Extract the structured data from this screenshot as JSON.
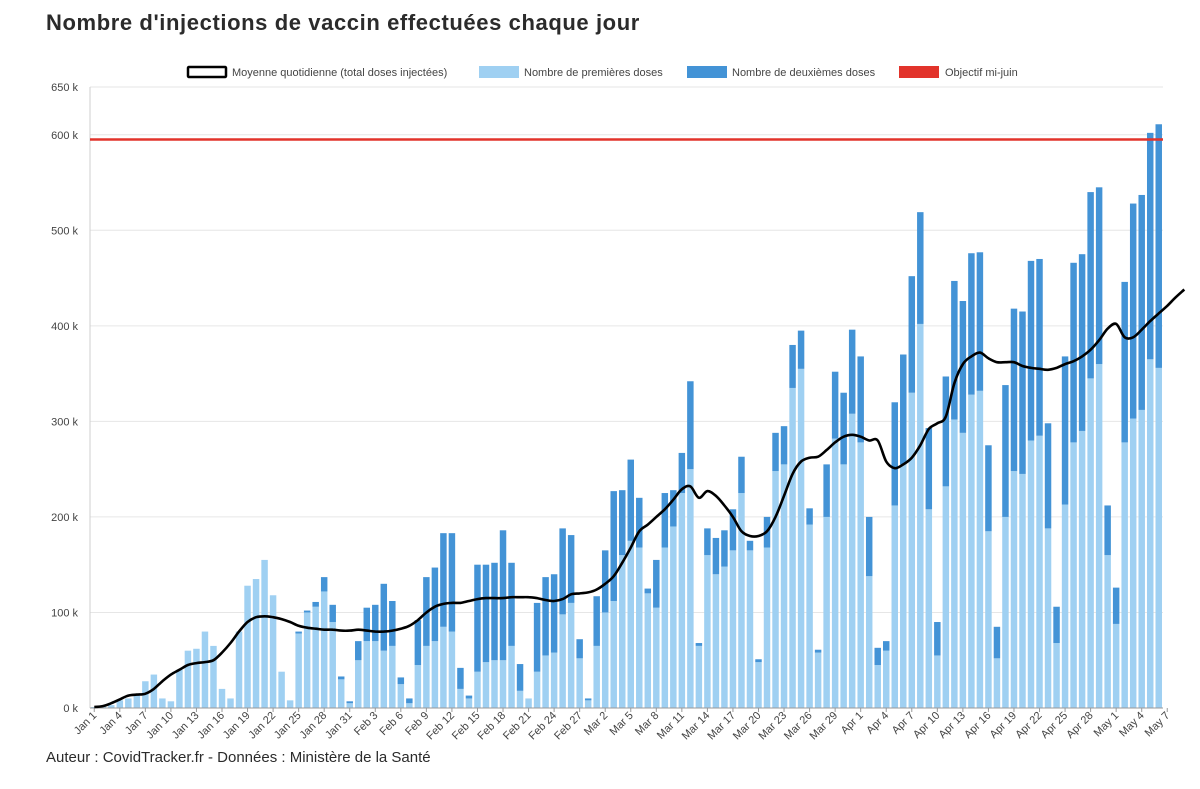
{
  "title": "Nombre d'injections de vaccin effectuées chaque jour",
  "footer": "Auteur : CovidTracker.fr - Données : Ministère de la Santé",
  "colors": {
    "first": "#9fd0f2",
    "second": "#4393d6",
    "average": "#000000",
    "objective": "#e2332b",
    "grid": "#e6e6e6"
  },
  "chart_data": {
    "type": "bar",
    "stacked": true,
    "legend_position": "top-center",
    "grid": true,
    "ylim": [
      0,
      650
    ],
    "y_ticks": [
      {
        "v": 0,
        "label": "0 k"
      },
      {
        "v": 100,
        "label": "100 k"
      },
      {
        "v": 200,
        "label": "200 k"
      },
      {
        "v": 300,
        "label": "300 k"
      },
      {
        "v": 400,
        "label": "400 k"
      },
      {
        "v": 500,
        "label": "500 k"
      },
      {
        "v": 600,
        "label": "600 k"
      },
      {
        "v": 650,
        "label": "650 k"
      }
    ],
    "x_tick_labels": [
      "Jan 1",
      "Jan 4",
      "Jan 7",
      "Jan 10",
      "Jan 13",
      "Jan 16",
      "Jan 19",
      "Jan 22",
      "Jan 25",
      "Jan 28",
      "Jan 31",
      "Feb 3",
      "Feb 6",
      "Feb 9",
      "Feb 12",
      "Feb 15",
      "Feb 18",
      "Feb 21",
      "Feb 24",
      "Feb 27",
      "Mar 2",
      "Mar 5",
      "Mar 8",
      "Mar 11",
      "Mar 14",
      "Mar 17",
      "Mar 20",
      "Mar 23",
      "Mar 26",
      "Mar 29",
      "Apr 1",
      "Apr 4",
      "Apr 7",
      "Apr 10",
      "Apr 13",
      "Apr 16",
      "Apr 19",
      "Apr 22",
      "Apr 25",
      "Apr 28",
      "May 1",
      "May 4",
      "May 7"
    ],
    "x_tick_every_days": 3,
    "legend": [
      {
        "key": "average",
        "label": "Moyenne quotidienne (total doses injectées)"
      },
      {
        "key": "first",
        "label": "Nombre de premières doses"
      },
      {
        "key": "second",
        "label": "Nombre de deuxièmes doses"
      },
      {
        "key": "objective",
        "label": "Objectif mi-juin"
      }
    ],
    "unit": "thousands of doses",
    "first_doses": [
      1,
      2,
      3,
      8,
      10,
      15,
      28,
      35,
      10,
      7,
      40,
      60,
      62,
      80,
      65,
      20,
      10,
      80,
      128,
      135,
      155,
      118,
      38,
      8,
      78,
      100,
      106,
      122,
      90,
      30,
      5,
      50,
      70,
      70,
      60,
      65,
      25,
      5,
      45,
      65,
      70,
      85,
      80,
      20,
      10,
      38,
      48,
      50,
      50,
      65,
      18,
      10,
      38,
      55,
      58,
      98,
      110,
      52,
      8,
      65,
      100,
      112,
      160,
      175,
      168,
      120,
      105,
      168,
      190,
      225,
      250,
      65,
      160,
      140,
      148,
      165,
      225,
      165,
      48,
      168,
      248,
      255,
      335,
      355,
      192,
      58,
      200,
      282,
      255,
      308,
      278,
      138,
      45,
      60,
      212,
      255,
      330,
      402,
      208,
      55,
      232,
      302,
      288,
      328,
      332,
      185,
      52,
      200,
      248,
      245,
      280,
      285,
      188,
      68,
      213,
      278,
      290,
      345,
      360,
      160,
      88,
      278,
      303,
      312,
      365,
      356
    ],
    "second_doses": [
      0,
      0,
      0,
      0,
      0,
      0,
      0,
      0,
      0,
      0,
      0,
      0,
      0,
      0,
      0,
      0,
      0,
      0,
      0,
      0,
      0,
      0,
      0,
      0,
      2,
      2,
      5,
      15,
      18,
      3,
      2,
      20,
      35,
      38,
      70,
      47,
      7,
      5,
      47,
      72,
      77,
      98,
      103,
      22,
      3,
      112,
      102,
      102,
      136,
      87,
      28,
      0,
      72,
      82,
      82,
      90,
      71,
      20,
      2,
      52,
      65,
      115,
      68,
      85,
      52,
      5,
      50,
      57,
      38,
      42,
      92,
      3,
      28,
      38,
      38,
      43,
      38,
      10,
      3,
      32,
      40,
      40,
      45,
      40,
      17,
      3,
      55,
      70,
      75,
      88,
      90,
      62,
      18,
      10,
      108,
      115,
      122,
      117,
      85,
      35,
      115,
      145,
      138,
      148,
      145,
      90,
      33,
      138,
      170,
      170,
      188,
      185,
      110,
      38,
      155,
      188,
      185,
      195,
      185,
      52,
      38,
      168,
      225,
      225,
      237,
      255
    ],
    "average_points": [
      [
        0,
        1
      ],
      [
        1,
        2
      ],
      [
        2,
        5
      ],
      [
        3,
        9
      ],
      [
        4,
        13
      ],
      [
        5,
        14
      ],
      [
        6,
        15
      ],
      [
        7,
        20
      ],
      [
        8,
        28
      ],
      [
        9,
        35
      ],
      [
        10,
        40
      ],
      [
        11,
        45
      ],
      [
        12,
        47
      ],
      [
        13,
        48
      ],
      [
        14,
        50
      ],
      [
        15,
        58
      ],
      [
        16,
        68
      ],
      [
        17,
        80
      ],
      [
        18,
        90
      ],
      [
        19,
        95
      ],
      [
        20,
        96
      ],
      [
        21,
        95
      ],
      [
        22,
        93
      ],
      [
        23,
        90
      ],
      [
        24,
        86
      ],
      [
        25,
        84
      ],
      [
        26,
        83
      ],
      [
        27,
        82
      ],
      [
        28,
        82
      ],
      [
        29,
        81
      ],
      [
        30,
        81
      ],
      [
        31,
        82
      ],
      [
        32,
        81
      ],
      [
        33,
        80
      ],
      [
        34,
        80
      ],
      [
        35,
        81
      ],
      [
        36,
        83
      ],
      [
        37,
        86
      ],
      [
        38,
        92
      ],
      [
        39,
        100
      ],
      [
        40,
        106
      ],
      [
        41,
        109
      ],
      [
        42,
        110
      ],
      [
        43,
        110
      ],
      [
        44,
        112
      ],
      [
        45,
        114
      ],
      [
        46,
        115
      ],
      [
        47,
        115
      ],
      [
        48,
        115
      ],
      [
        49,
        116
      ],
      [
        50,
        116
      ],
      [
        51,
        116
      ],
      [
        52,
        115
      ],
      [
        53,
        113
      ],
      [
        54,
        112
      ],
      [
        55,
        114
      ],
      [
        56,
        119
      ],
      [
        57,
        120
      ],
      [
        58,
        121
      ],
      [
        59,
        124
      ],
      [
        60,
        130
      ],
      [
        61,
        138
      ],
      [
        62,
        152
      ],
      [
        63,
        168
      ],
      [
        64,
        185
      ],
      [
        65,
        192
      ],
      [
        66,
        200
      ],
      [
        67,
        208
      ],
      [
        68,
        218
      ],
      [
        69,
        229
      ],
      [
        70,
        232
      ],
      [
        71,
        220
      ],
      [
        72,
        227
      ],
      [
        73,
        222
      ],
      [
        74,
        212
      ],
      [
        75,
        200
      ],
      [
        76,
        185
      ],
      [
        77,
        180
      ],
      [
        78,
        180
      ],
      [
        79,
        185
      ],
      [
        80,
        200
      ],
      [
        81,
        222
      ],
      [
        82,
        245
      ],
      [
        83,
        258
      ],
      [
        84,
        262
      ],
      [
        85,
        263
      ],
      [
        86,
        270
      ],
      [
        87,
        278
      ],
      [
        88,
        284
      ],
      [
        89,
        286
      ],
      [
        90,
        284
      ],
      [
        91,
        280
      ],
      [
        92,
        280
      ],
      [
        93,
        258
      ],
      [
        94,
        251
      ],
      [
        95,
        255
      ],
      [
        96,
        262
      ],
      [
        97,
        275
      ],
      [
        98,
        292
      ],
      [
        99,
        298
      ],
      [
        100,
        305
      ],
      [
        101,
        340
      ],
      [
        102,
        360
      ],
      [
        103,
        368
      ],
      [
        104,
        372
      ],
      [
        105,
        366
      ],
      [
        106,
        362
      ],
      [
        107,
        362
      ],
      [
        108,
        362
      ],
      [
        109,
        358
      ],
      [
        110,
        356
      ],
      [
        111,
        355
      ],
      [
        112,
        354
      ],
      [
        113,
        356
      ],
      [
        114,
        360
      ],
      [
        115,
        363
      ],
      [
        116,
        368
      ],
      [
        117,
        375
      ],
      [
        118,
        385
      ],
      [
        119,
        397
      ],
      [
        120,
        402
      ],
      [
        121,
        388
      ],
      [
        122,
        388
      ],
      [
        123,
        396
      ],
      [
        124,
        405
      ],
      [
        125,
        413
      ],
      [
        126,
        421
      ],
      [
        127,
        430
      ],
      [
        128,
        438
      ]
    ],
    "objective_value": 595
  }
}
